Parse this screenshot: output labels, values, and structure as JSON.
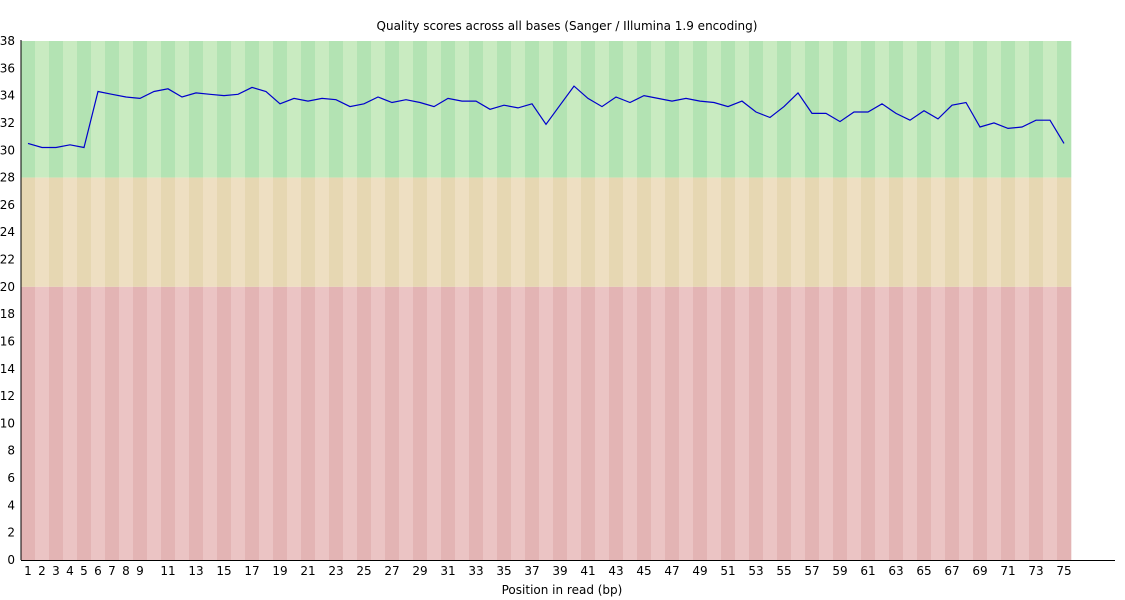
{
  "chart_data": {
    "type": "line",
    "title": "Quality scores across all bases (Sanger / Illumina 1.9 encoding)",
    "xlabel": "Position in read (bp)",
    "ylabel": "",
    "ylim": [
      0,
      38
    ],
    "y_ticks": [
      0,
      2,
      4,
      6,
      8,
      10,
      12,
      14,
      16,
      18,
      20,
      22,
      24,
      26,
      28,
      30,
      32,
      34,
      36,
      38
    ],
    "x_positions": [
      1,
      75
    ],
    "x_tick_labels": [
      "1",
      "2",
      "3",
      "4",
      "5",
      "6",
      "7",
      "8",
      "9",
      "11",
      "13",
      "15",
      "17",
      "19",
      "21",
      "23",
      "25",
      "27",
      "29",
      "31",
      "33",
      "35",
      "37",
      "39",
      "41",
      "43",
      "45",
      "47",
      "49",
      "51",
      "53",
      "55",
      "57",
      "59",
      "61",
      "63",
      "65",
      "67",
      "69",
      "71",
      "73",
      "75"
    ],
    "quality_bands": [
      {
        "name": "good",
        "from": 28,
        "to": 38,
        "colors": [
          "#b3e3b3",
          "#c9ebc1"
        ]
      },
      {
        "name": "reasonable",
        "from": 20,
        "to": 28,
        "colors": [
          "#e6d7b2",
          "#eedfc2"
        ]
      },
      {
        "name": "poor",
        "from": 0,
        "to": 20,
        "colors": [
          "#e3b4b4",
          "#ebc4c4"
        ]
      }
    ],
    "series": [
      {
        "color": "#0000cc",
        "x": [
          1,
          2,
          3,
          4,
          5,
          6,
          7,
          8,
          9,
          10,
          11,
          12,
          13,
          14,
          15,
          16,
          17,
          18,
          19,
          20,
          21,
          22,
          23,
          24,
          25,
          26,
          27,
          28,
          29,
          30,
          31,
          32,
          33,
          34,
          35,
          36,
          37,
          38,
          39,
          40,
          41,
          42,
          43,
          44,
          45,
          46,
          47,
          48,
          49,
          50,
          51,
          52,
          53,
          54,
          55,
          56,
          57,
          58,
          59,
          60,
          61,
          62,
          63,
          64,
          65,
          66,
          67,
          68,
          69,
          70,
          71,
          72,
          73,
          74,
          75
        ],
        "values": [
          30.5,
          30.2,
          30.2,
          30.4,
          30.2,
          34.3,
          34.1,
          33.9,
          33.8,
          34.3,
          34.5,
          33.9,
          34.2,
          34.1,
          34.0,
          34.1,
          34.6,
          34.3,
          33.4,
          33.8,
          33.6,
          33.8,
          33.7,
          33.2,
          33.4,
          33.9,
          33.5,
          33.7,
          33.5,
          33.2,
          33.8,
          33.6,
          33.6,
          33.0,
          33.3,
          33.1,
          33.4,
          31.9,
          33.3,
          34.7,
          33.8,
          33.2,
          33.9,
          33.5,
          34.0,
          33.8,
          33.6,
          33.8,
          33.6,
          33.5,
          33.2,
          33.6,
          32.8,
          32.4,
          33.2,
          34.2,
          32.7,
          32.7,
          32.1,
          32.8,
          32.8,
          33.4,
          32.7,
          32.2,
          32.9,
          32.3,
          33.3,
          33.5,
          31.7,
          32.0,
          31.6,
          31.7,
          32.2,
          32.2,
          30.5
        ]
      }
    ]
  }
}
